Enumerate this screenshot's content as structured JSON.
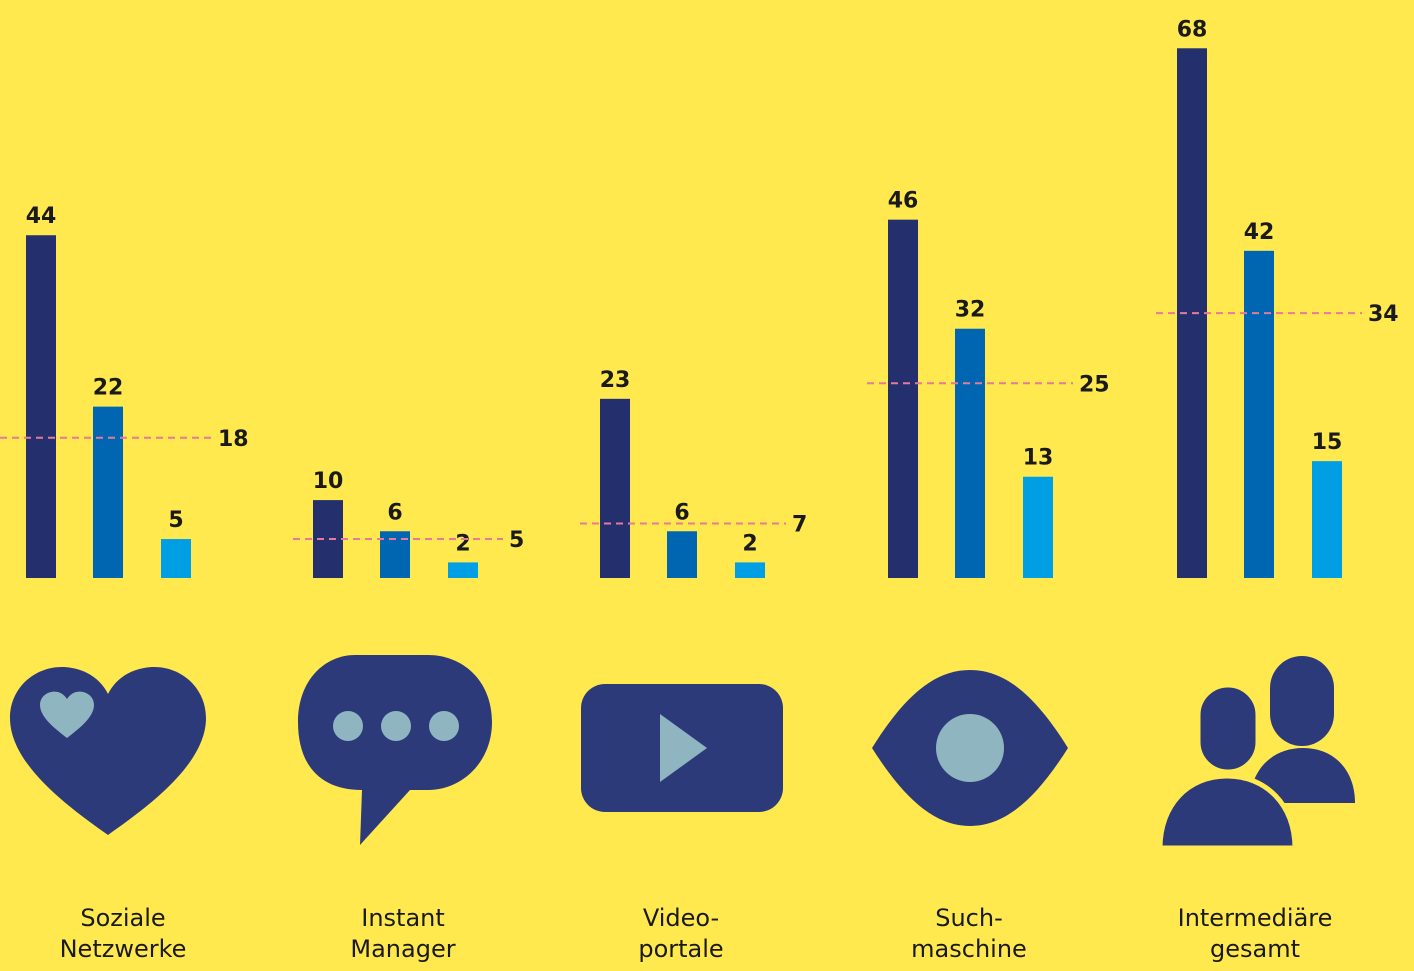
{
  "chart_data": {
    "type": "bar",
    "categories": [
      [
        "Soziale",
        "Netzwerke"
      ],
      [
        "Instant",
        "Manager"
      ],
      [
        "Video-",
        "portale"
      ],
      [
        "Such-",
        "maschine"
      ],
      [
        "Intermediäre",
        "gesamt"
      ]
    ],
    "series": [
      {
        "values": [
          44,
          10,
          23,
          46,
          68
        ],
        "color": "#24306E"
      },
      {
        "values": [
          22,
          6,
          6,
          32,
          42
        ],
        "color": "#0066B2"
      },
      {
        "values": [
          5,
          2,
          2,
          13,
          15
        ],
        "color": "#009FE3"
      }
    ],
    "averages": [
      18,
      5,
      7,
      25,
      34
    ],
    "average_line_color": "#E8799A",
    "ylim": [
      0,
      68
    ],
    "icons": [
      "heart-icon",
      "chat-bubble-icon",
      "video-play-icon",
      "eye-icon",
      "users-icon"
    ],
    "icon_color": "#2C3A7A",
    "icon_accent": "#8FB5C0"
  }
}
